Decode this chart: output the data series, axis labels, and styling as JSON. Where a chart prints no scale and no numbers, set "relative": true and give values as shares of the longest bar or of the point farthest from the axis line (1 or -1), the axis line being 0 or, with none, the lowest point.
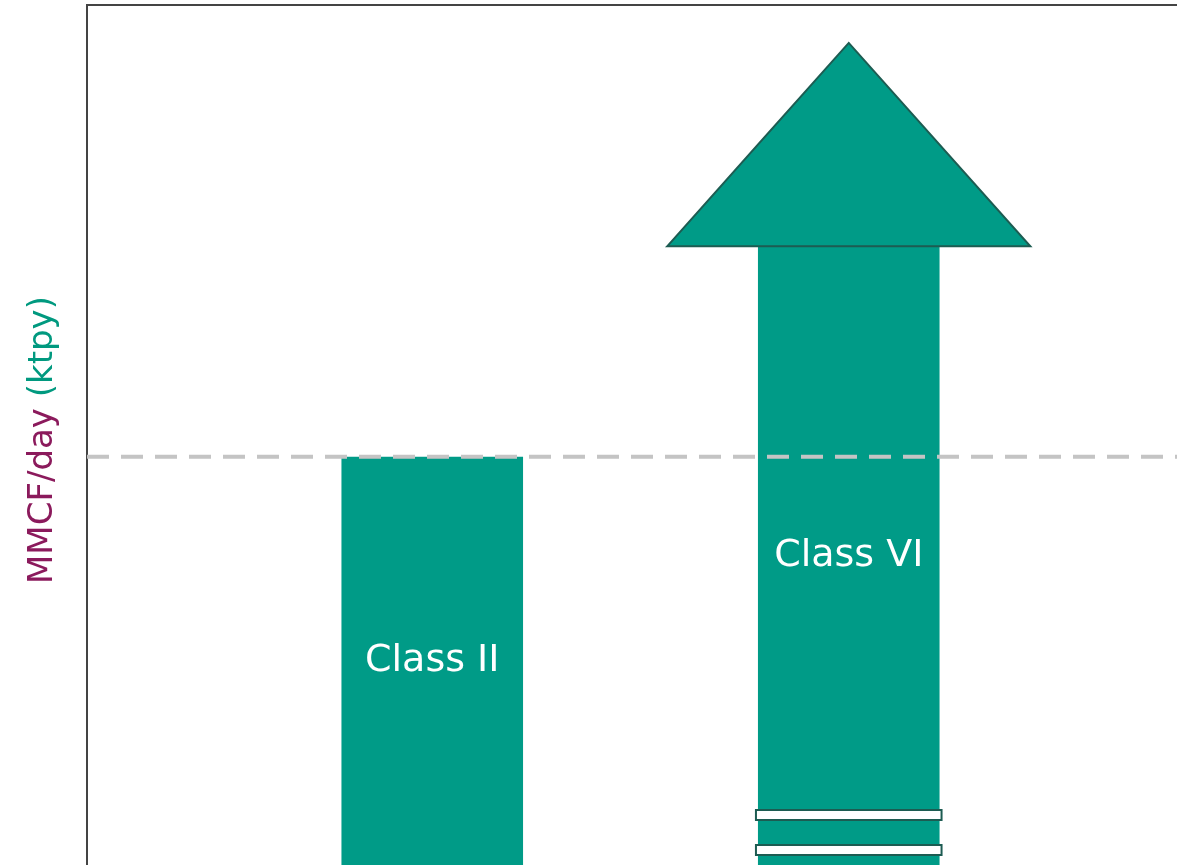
{
  "chart_data": {
    "type": "bar",
    "ylabel": "MMCF/day (ktpy)",
    "categories": [
      "Class II",
      "Class VI"
    ],
    "values": [
      0.66,
      1
    ],
    "color": "#009b87",
    "relative": true,
    "ref_lines": [
      {
        "axis": "y",
        "value": 0.66,
        "color": "#c4c4c4",
        "line_style": "dashed"
      }
    ]
  }
}
